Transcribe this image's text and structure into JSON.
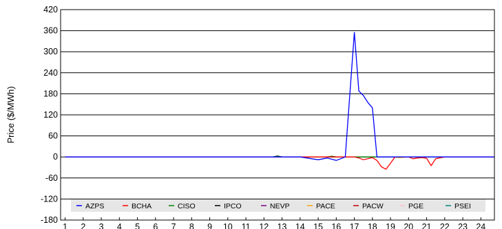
{
  "chart_data": {
    "type": "line",
    "ylabel": "Price ($/MWh)",
    "xlabel": "",
    "ylim": [
      -180,
      420
    ],
    "yticks": [
      420,
      360,
      300,
      240,
      180,
      120,
      60,
      0,
      -60,
      -120,
      -180
    ],
    "xlim": [
      0.75,
      24.75
    ],
    "xticks": [
      1,
      2,
      3,
      4,
      5,
      6,
      7,
      8,
      9,
      10,
      11,
      12,
      13,
      14,
      15,
      16,
      17,
      18,
      19,
      20,
      21,
      22,
      23,
      24
    ],
    "grid": "horizontal",
    "legend_position": "bottom-inside",
    "series": [
      {
        "name": "AZPS",
        "color": "#0000ff",
        "x": [
          1,
          14,
          15,
          15.5,
          16,
          16.5,
          17,
          17.25,
          17.5,
          17.75,
          18,
          18.25,
          19,
          24.75
        ],
        "y": [
          0,
          0,
          -8,
          -3,
          -10,
          0,
          355,
          188,
          175,
          155,
          140,
          0,
          0,
          0
        ]
      },
      {
        "name": "BCHA",
        "color": "#ff0000",
        "x": [
          1,
          17,
          17.25,
          17.5,
          17.75,
          18,
          18.25,
          18.5,
          18.75,
          19,
          19.25,
          20,
          20.25,
          20.5,
          20.75,
          21,
          21.25,
          21.5,
          22,
          24.75
        ],
        "y": [
          0,
          0,
          -3,
          -8,
          -5,
          -2,
          -10,
          -28,
          -35,
          -18,
          0,
          0,
          -5,
          -3,
          -2,
          -4,
          -25,
          -5,
          0,
          0
        ]
      },
      {
        "name": "CISO",
        "color": "#008000",
        "x": [
          1,
          12.5,
          12.75,
          13,
          15.5,
          15.75,
          16,
          24.75
        ],
        "y": [
          0,
          0,
          2,
          0,
          0,
          2,
          0,
          0
        ]
      },
      {
        "name": "IPCO",
        "color": "#000000",
        "x": [
          1,
          12.5,
          12.75,
          13,
          24.75
        ],
        "y": [
          0,
          0,
          3,
          0,
          0
        ]
      },
      {
        "name": "NEVP",
        "color": "#800080",
        "x": [
          1,
          24.75
        ],
        "y": [
          0,
          0
        ]
      },
      {
        "name": "PACE",
        "color": "#ffa500",
        "x": [
          1,
          19,
          19.5,
          20,
          24.75
        ],
        "y": [
          0,
          0,
          -2,
          0,
          0
        ]
      },
      {
        "name": "PACW",
        "color": "#c00000",
        "x": [
          1,
          24.75
        ],
        "y": [
          0,
          0
        ]
      },
      {
        "name": "PGE",
        "color": "#ffc0cb",
        "x": [
          1,
          24.75
        ],
        "y": [
          0,
          0
        ]
      },
      {
        "name": "PSEI",
        "color": "#008080",
        "x": [
          1,
          24.75
        ],
        "y": [
          0,
          0
        ]
      }
    ]
  }
}
